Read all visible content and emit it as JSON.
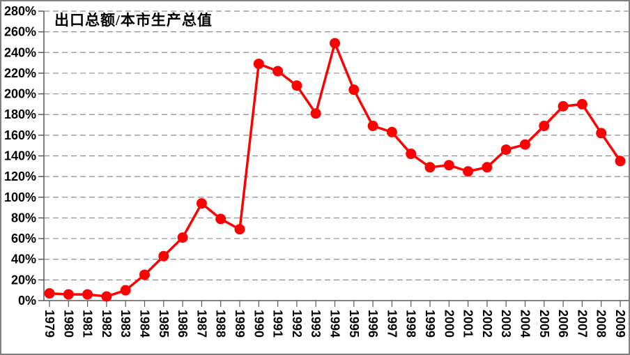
{
  "chart_data": {
    "type": "line",
    "title": "出口总额/本市生产总值",
    "categories": [
      "1979",
      "1980",
      "1981",
      "1982",
      "1983",
      "1984",
      "1985",
      "1986",
      "1987",
      "1988",
      "1989",
      "1990",
      "1991",
      "1992",
      "1993",
      "1994",
      "1995",
      "1996",
      "1997",
      "1998",
      "1999",
      "2000",
      "2001",
      "2002",
      "2003",
      "2004",
      "2005",
      "2006",
      "2007",
      "2008",
      "2009"
    ],
    "values": [
      7,
      6,
      6,
      4,
      10,
      25,
      43,
      61,
      94,
      79,
      69,
      229,
      222,
      208,
      181,
      249,
      204,
      169,
      163,
      142,
      129,
      131,
      125,
      129,
      146,
      151,
      169,
      188,
      190,
      162,
      135
    ],
    "unit": "%",
    "y_axis": {
      "min": 0,
      "max": 280,
      "step": 20,
      "tick_labels": [
        "0%",
        "20%",
        "40%",
        "60%",
        "80%",
        "100%",
        "120%",
        "140%",
        "160%",
        "180%",
        "200%",
        "220%",
        "240%",
        "260%",
        "280%"
      ]
    },
    "x_axis": {
      "label_rotation_deg": 90
    },
    "grid": "horizontal-dashed",
    "legend": "none",
    "colors": {
      "line": "#FF0000",
      "marker": "#FF0000",
      "grid": "#8C8C8C",
      "axis": "#595959",
      "text": "#000000",
      "frame_border": "#808080",
      "background": "#FFFFFF"
    }
  }
}
